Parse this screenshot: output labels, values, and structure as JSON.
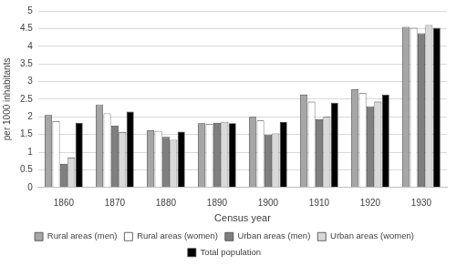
{
  "chart_data": {
    "type": "bar",
    "x_label": "Census year",
    "y_label": "per 1000 inhabitants",
    "categories": [
      "1860",
      "1870",
      "1880",
      "1890",
      "1900",
      "1910",
      "1920",
      "1930"
    ],
    "series": [
      {
        "name": "Rural areas (men)",
        "color": "#a6a6a6",
        "values": [
          2.05,
          2.35,
          1.62,
          1.82,
          2.0,
          2.63,
          2.78,
          4.55
        ]
      },
      {
        "name": "Rural areas (women)",
        "color": "#ffffff",
        "values": [
          1.88,
          2.1,
          1.6,
          1.8,
          1.9,
          2.43,
          2.68,
          4.52
        ]
      },
      {
        "name": "Urban areas (men)",
        "color": "#7f7f7f",
        "values": [
          0.67,
          1.75,
          1.43,
          1.83,
          1.5,
          1.93,
          2.3,
          4.37
        ]
      },
      {
        "name": "Urban areas (women)",
        "color": "#d9d9d9",
        "values": [
          0.85,
          1.57,
          1.35,
          1.86,
          1.53,
          2.0,
          2.43,
          4.6
        ]
      },
      {
        "name": "Total population",
        "color": "#000000",
        "values": [
          1.83,
          2.15,
          1.58,
          1.82,
          1.85,
          2.4,
          2.63,
          4.52
        ]
      }
    ],
    "ylim": [
      0,
      5
    ],
    "yticks": [
      0,
      0.5,
      1,
      1.5,
      2,
      2.5,
      3,
      3.5,
      4,
      4.5,
      5
    ],
    "grid": true,
    "legend": "bottom"
  }
}
